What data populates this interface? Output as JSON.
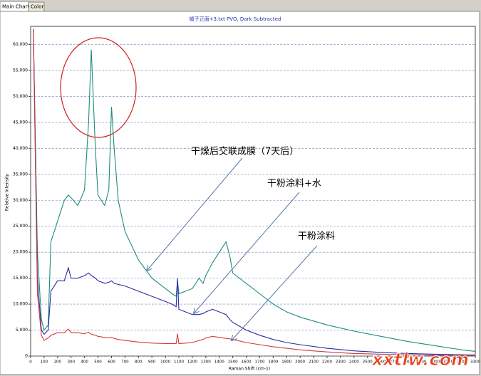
{
  "tabs": [
    "Main Chart",
    "Color"
  ],
  "chart_data": {
    "type": "line",
    "title": "椒子正面+3.txt    PVO, Dark Subtracted",
    "xlabel": "Raman Shift (cm-1)",
    "ylabel": "Relative Intensity",
    "watermark": "xxtlw.com",
    "x": [
      20,
      50,
      80,
      100,
      130,
      150,
      200,
      250,
      280,
      300,
      350,
      400,
      430,
      450,
      480,
      500,
      550,
      580,
      600,
      620,
      650,
      700,
      800,
      900,
      1000,
      1050,
      1080,
      1090,
      1100,
      1150,
      1200,
      1250,
      1280,
      1300,
      1350,
      1400,
      1450,
      1480,
      1500,
      1600,
      1700,
      1800,
      1900,
      2000,
      2200,
      2400,
      2600,
      2800,
      3000,
      3200,
      3300
    ],
    "series": [
      {
        "name": "干燥后交联成膜（7天后）",
        "color": "#1e8c7a",
        "values": [
          63000,
          20000,
          7000,
          5000,
          6000,
          22000,
          26000,
          30000,
          31000,
          30500,
          29000,
          32000,
          45000,
          59000,
          40000,
          31000,
          29000,
          32000,
          48000,
          40000,
          30000,
          24000,
          18500,
          15000,
          13000,
          12000,
          11500,
          14500,
          12000,
          12500,
          13000,
          15000,
          14000,
          15500,
          18000,
          20000,
          22000,
          19000,
          16000,
          14000,
          12000,
          10000,
          8500,
          7500,
          6000,
          4800,
          3800,
          2800,
          2000,
          1200,
          900
        ]
      },
      {
        "name": "干粉涂料+水",
        "color": "#2a2aa8",
        "values": [
          63000,
          15000,
          5000,
          4200,
          5000,
          12500,
          14500,
          14500,
          17000,
          15000,
          15000,
          15500,
          16000,
          15500,
          15000,
          14500,
          14000,
          14200,
          14500,
          14000,
          13800,
          13500,
          12500,
          11500,
          10500,
          10000,
          9500,
          15000,
          9000,
          8500,
          8000,
          8000,
          8200,
          8500,
          9000,
          8500,
          8000,
          7000,
          6500,
          5000,
          4000,
          3200,
          2600,
          2200,
          1500,
          1000,
          700,
          500,
          350,
          250,
          200
        ]
      },
      {
        "name": "干粉涂料",
        "color": "#d23a3a",
        "values": [
          63000,
          12000,
          4000,
          3000,
          3500,
          4000,
          4500,
          4500,
          5200,
          4500,
          4500,
          4300,
          4600,
          4200,
          4000,
          3800,
          3600,
          3500,
          3600,
          3400,
          3200,
          3000,
          2700,
          2500,
          2400,
          2400,
          2400,
          4300,
          2400,
          2500,
          2600,
          3000,
          3200,
          3500,
          3800,
          3600,
          3400,
          3300,
          3200,
          2600,
          2200,
          1800,
          1500,
          1200,
          800,
          500,
          350,
          250,
          150,
          100,
          80
        ]
      }
    ],
    "xlim": [
      0,
      3300
    ],
    "xticks": [
      0,
      100,
      200,
      300,
      400,
      500,
      600,
      700,
      800,
      900,
      1000,
      1100,
      1200,
      1300,
      1400,
      1500,
      1600,
      1700,
      1800,
      1900,
      2000,
      2100,
      2200,
      2300,
      2400,
      2500,
      2600,
      2700,
      2800,
      2900,
      3000,
      3100,
      3200,
      3300
    ],
    "ylim": [
      0,
      63500
    ],
    "yticks": [
      0,
      {
        "value": 5000,
        "label": "5,000"
      },
      {
        "value": 10000,
        "label": "10,000"
      },
      {
        "value": 15000,
        "label": "15,000"
      },
      {
        "value": 20000,
        "label": "20,000"
      },
      {
        "value": 25000,
        "label": "25,000"
      },
      {
        "value": 30000,
        "label": "30,000"
      },
      {
        "value": 35000,
        "label": "35,000"
      },
      {
        "value": 40000,
        "label": "40,000"
      },
      {
        "value": 45000,
        "label": "45,000"
      },
      {
        "value": 50000,
        "label": "50,000"
      },
      {
        "value": 55000,
        "label": "55,000"
      },
      {
        "value": 60000,
        "label": "60,000"
      }
    ],
    "grid": true
  }
}
